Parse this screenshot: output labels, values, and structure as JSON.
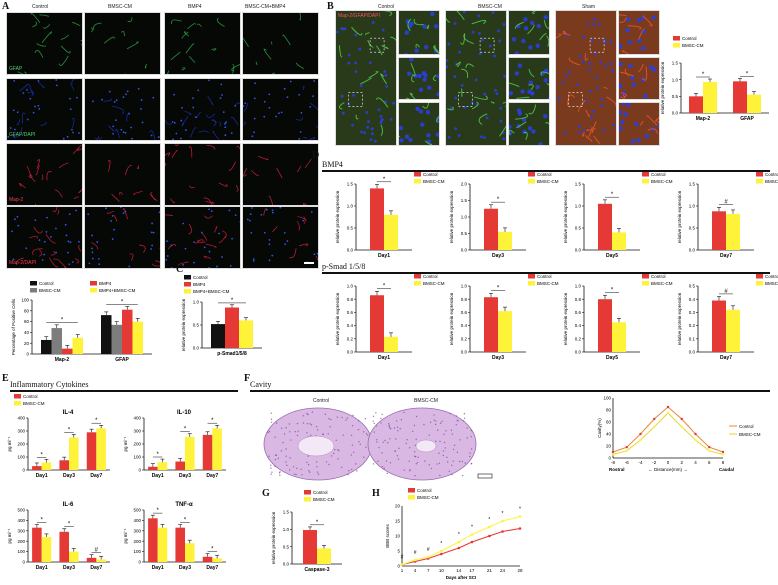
{
  "panel_labels": {
    "a": "A",
    "b": "B",
    "c": "C",
    "d": "D",
    "e": "E",
    "f": "F",
    "g": "G",
    "h": "H"
  },
  "colors": {
    "control": "#e53935",
    "bmsc": "#fff33a",
    "black": "#111111",
    "gray": "#7d7d7d",
    "green_fluor": "#2ea844",
    "blue_fluor": "#1a2fb8",
    "red_fluor": "#d21f3c",
    "he_pink": "#c58fcf"
  },
  "panel_a": {
    "columns": [
      "Control",
      "BMSC-CM",
      "BMP4",
      "BMSC-CM+BMP4"
    ],
    "row_tags": [
      "GFAP",
      "GFAP/DAPI",
      "Map-2",
      "Map-2/DAPI"
    ]
  },
  "panel_b": {
    "columns": [
      "Control",
      "BMSC-CM",
      "Sham"
    ],
    "tag": "Map-2/GFAP/DAPI"
  },
  "icons": {
    "scale_bar": "scale-bar-icon"
  },
  "chart_data": [
    {
      "id": "a_bar",
      "type": "bar",
      "categories": [
        "Map-2",
        "GFAP"
      ],
      "ylabel": "Percentage of Positive Cells",
      "ylim": [
        0,
        100
      ],
      "yticks": [
        "0",
        "20",
        "40",
        "60",
        "80",
        "100"
      ],
      "legend": [
        "Control",
        "BMSC-CM",
        "BMP4",
        "BMP4+BMSC-CM"
      ],
      "series": [
        {
          "name": "Control",
          "values": [
            26,
            72
          ]
        },
        {
          "name": "BMSC-CM",
          "values": [
            48,
            54
          ]
        },
        {
          "name": "BMP4",
          "values": [
            10,
            82
          ]
        },
        {
          "name": "BMP4+BMSC-CM",
          "values": [
            30,
            60
          ]
        }
      ],
      "marks": [
        "*",
        "*",
        "*",
        "*",
        "*",
        "*"
      ]
    },
    {
      "id": "b_bar",
      "type": "bar",
      "categories": [
        "Map-2",
        "GFAP"
      ],
      "ylabel": "relative protein expression",
      "ylim": [
        0,
        1.5
      ],
      "yticks": [
        "0.0",
        "0.5",
        "1.0",
        "1.5"
      ],
      "legend": [
        "Control",
        "BMSC-CM"
      ],
      "series": [
        {
          "name": "Control",
          "values": [
            0.5,
            0.95
          ]
        },
        {
          "name": "BMSC-CM",
          "values": [
            0.93,
            0.55
          ]
        }
      ],
      "marks": [
        "*",
        "*"
      ]
    },
    {
      "id": "c_bar",
      "type": "bar",
      "categories": [
        "p-Smad1/5/8"
      ],
      "ylabel": "relative protein expression",
      "ylim": [
        0,
        1.0
      ],
      "yticks": [
        "0.0",
        "0.5",
        "1.0"
      ],
      "legend": [
        "Control",
        "BMP4",
        "BMP4+BMSC-CM"
      ],
      "series": [
        {
          "name": "Control",
          "values": [
            0.52
          ]
        },
        {
          "name": "BMP4",
          "values": [
            0.88
          ]
        },
        {
          "name": "BMP4+BMSC-CM",
          "values": [
            0.6
          ]
        }
      ],
      "marks": [
        "*",
        "*"
      ]
    },
    {
      "id": "d_bmp4",
      "type": "bar",
      "title": "BMP4",
      "ylabel": "relative protein expression",
      "legend": [
        "Control",
        "BMSC-CM"
      ],
      "groups": [
        {
          "label": "Day1",
          "ylim": [
            0,
            1.5
          ],
          "yticks": [
            "0.0",
            "0.5",
            "1.0",
            "1.5"
          ],
          "values": [
            1.4,
            0.8
          ],
          "mark": "*"
        },
        {
          "label": "Day3",
          "ylim": [
            0,
            2.0
          ],
          "yticks": [
            "0.0",
            "0.5",
            "1.0",
            "1.5",
            "2.0"
          ],
          "values": [
            1.25,
            0.55
          ],
          "mark": "*"
        },
        {
          "label": "Day5",
          "ylim": [
            0,
            1.5
          ],
          "yticks": [
            "0.0",
            "0.5",
            "1.0",
            "1.5"
          ],
          "values": [
            1.05,
            0.4
          ],
          "mark": "*"
        },
        {
          "label": "Day7",
          "ylim": [
            0,
            1.5
          ],
          "yticks": [
            "0.0",
            "0.5",
            "1.0",
            "1.5"
          ],
          "values": [
            0.88,
            0.82
          ],
          "mark": "#"
        }
      ]
    },
    {
      "id": "d_psmad",
      "type": "bar",
      "title": "p-Smad 1/5/8",
      "ylabel": "relative protein expression",
      "legend": [
        "Control",
        "BMSC-CM"
      ],
      "groups": [
        {
          "label": "Day1",
          "ylim": [
            0,
            1.0
          ],
          "yticks": [
            "0.0",
            "0.2",
            "0.4",
            "0.6",
            "0.8",
            "1.0"
          ],
          "values": [
            0.86,
            0.23
          ],
          "mark": "*"
        },
        {
          "label": "Day3",
          "ylim": [
            0,
            1.0
          ],
          "yticks": [
            "0.0",
            "0.2",
            "0.4",
            "0.6",
            "0.8",
            "1.0"
          ],
          "values": [
            0.83,
            0.62
          ],
          "mark": "*"
        },
        {
          "label": "Day5",
          "ylim": [
            0,
            1.0
          ],
          "yticks": [
            "0.0",
            "0.2",
            "0.4",
            "0.6",
            "0.8",
            "1.0"
          ],
          "values": [
            0.8,
            0.45
          ],
          "mark": "*"
        },
        {
          "label": "Day7",
          "ylim": [
            0,
            0.5
          ],
          "yticks": [
            "0.0",
            "0.1",
            "0.2",
            "0.3",
            "0.4",
            "0.5"
          ],
          "values": [
            0.39,
            0.32
          ],
          "mark": "#"
        }
      ]
    },
    {
      "id": "e_cyto",
      "type": "bar",
      "title": "Inflammatory Cytokines",
      "ylabel": "pg ml⁻¹",
      "legend": [
        "Control",
        "BMSC-CM"
      ],
      "categories": [
        "Day1",
        "Day3",
        "Day7"
      ],
      "panels": [
        {
          "name": "IL-4",
          "ylim": [
            0,
            400
          ],
          "yticks": [
            "0",
            "100",
            "200",
            "300",
            "400"
          ],
          "control": [
            30,
            75,
            290
          ],
          "bmsc": [
            58,
            250,
            320
          ],
          "marks": [
            "*",
            "*",
            "*"
          ]
        },
        {
          "name": "IL-10",
          "ylim": [
            0,
            400
          ],
          "yticks": [
            "0",
            "100",
            "200",
            "300",
            "400"
          ],
          "control": [
            25,
            65,
            270
          ],
          "bmsc": [
            60,
            255,
            320
          ],
          "marks": [
            "*",
            "*",
            "*"
          ]
        },
        {
          "name": "IL-6",
          "ylim": [
            0,
            500
          ],
          "yticks": [
            "0",
            "100",
            "200",
            "300",
            "400",
            "500"
          ],
          "control": [
            330,
            290,
            40
          ],
          "bmsc": [
            240,
            100,
            25
          ],
          "marks": [
            "*",
            "*",
            "#"
          ]
        },
        {
          "name": "TNF-α",
          "ylim": [
            0,
            500
          ],
          "yticks": [
            "0",
            "100",
            "200",
            "300",
            "400",
            "500"
          ],
          "control": [
            420,
            330,
            50
          ],
          "bmsc": [
            330,
            180,
            35
          ],
          "marks": [
            "*",
            "*",
            "*"
          ]
        }
      ]
    },
    {
      "id": "f_cavity",
      "type": "line",
      "title": "Cavity",
      "ylabel": "Cavity(%)",
      "xlabel": "Distance(mm)",
      "x_ends": [
        "Rostral",
        "Caudal"
      ],
      "x": [
        -8,
        -6,
        -4,
        -2,
        0,
        2,
        4,
        6,
        8
      ],
      "xticks": [
        "-8",
        "-6",
        "-4",
        "-2",
        "0",
        "2",
        "4",
        "6",
        "8"
      ],
      "ylim": [
        0,
        100
      ],
      "yticks": [
        "0",
        "20",
        "40",
        "60",
        "80",
        "100"
      ],
      "series": [
        {
          "name": "Control",
          "values": [
            10,
            18,
            40,
            65,
            85,
            65,
            40,
            18,
            10
          ]
        },
        {
          "name": "BMSC-CM",
          "values": [
            6,
            12,
            30,
            52,
            75,
            52,
            30,
            12,
            6
          ]
        }
      ]
    },
    {
      "id": "g_caspase",
      "type": "bar",
      "categories": [
        "Caspase-3"
      ],
      "ylabel": "relative protein expression",
      "ylim": [
        0,
        1.5
      ],
      "yticks": [
        "0.0",
        "0.5",
        "1.0",
        "1.5"
      ],
      "legend": [
        "Control",
        "BMSC-CM"
      ],
      "series": [
        {
          "name": "Control",
          "values": [
            0.98
          ]
        },
        {
          "name": "BMSC-CM",
          "values": [
            0.45
          ]
        }
      ],
      "marks": [
        "*"
      ]
    },
    {
      "id": "h_bbb",
      "type": "line",
      "ylabel": "BBB scores",
      "xlabel": "Days after SCI",
      "x": [
        1,
        4,
        7,
        10,
        14,
        17,
        21,
        24,
        28
      ],
      "xticks": [
        "1",
        "4",
        "7",
        "10",
        "14",
        "17",
        "21",
        "24",
        "28"
      ],
      "ylim": [
        0,
        20
      ],
      "yticks": [
        "0",
        "5",
        "10",
        "15",
        "20"
      ],
      "legend": [
        "Control",
        "BMSC-CM"
      ],
      "series": [
        {
          "name": "Control",
          "values": [
            0.5,
            1.5,
            2.5,
            4,
            6,
            8,
            10,
            11.5,
            12.5
          ]
        },
        {
          "name": "BMSC-CM",
          "values": [
            0.5,
            2,
            3,
            5,
            8,
            10.5,
            13,
            15,
            16.5
          ]
        }
      ],
      "marks": [
        "#",
        "#",
        "#",
        "*",
        "*",
        "*",
        "*",
        "*",
        "*"
      ]
    }
  ],
  "f_titles": [
    "Control",
    "BMSC-CM"
  ]
}
